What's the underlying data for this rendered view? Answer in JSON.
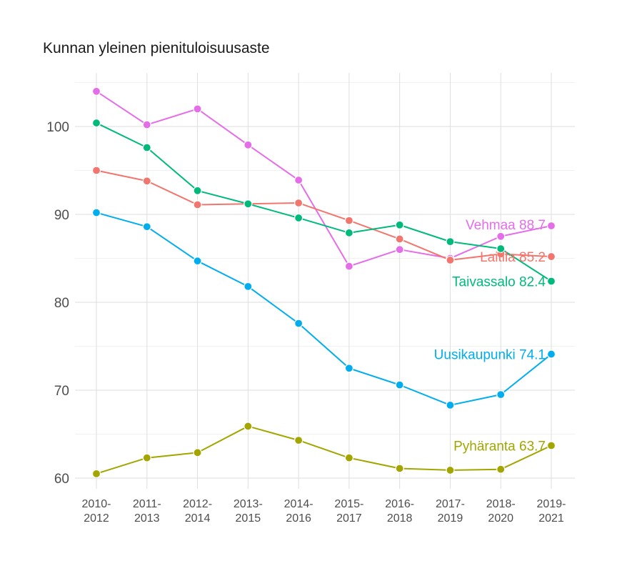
{
  "chart_data": {
    "type": "line",
    "title": "Kunnan yleinen pienituloisuusaste",
    "xlabel": "",
    "ylabel": "",
    "categories": [
      "2010-\n2012",
      "2011-\n2013",
      "2012-\n2014",
      "2013-\n2015",
      "2014-\n2016",
      "2015-\n2017",
      "2016-\n2018",
      "2017-\n2019",
      "2018-\n2020",
      "2019-\n2021"
    ],
    "ylim": [
      58.5,
      105
    ],
    "yticks": [
      60,
      70,
      80,
      90,
      100
    ],
    "grid": true,
    "legend": "none",
    "series": [
      {
        "name": "Vehmaa",
        "color": "#e56de9",
        "end_label": "Vehmaa 88.7",
        "values": [
          104.0,
          100.2,
          102.0,
          97.9,
          93.9,
          84.1,
          86.0,
          85.0,
          87.5,
          88.7
        ]
      },
      {
        "name": "Laitila",
        "color": "#f2766d",
        "end_label": "Laitila 85.2",
        "values": [
          95.0,
          93.8,
          91.1,
          91.2,
          91.3,
          89.3,
          87.2,
          84.8,
          85.5,
          85.2
        ]
      },
      {
        "name": "Taivassalo",
        "color": "#00ba7c",
        "end_label": "Taivassalo 82.4",
        "values": [
          100.4,
          97.6,
          92.7,
          91.2,
          89.6,
          87.9,
          88.8,
          86.9,
          86.1,
          82.4
        ]
      },
      {
        "name": "Uusikaupunki",
        "color": "#00aeef",
        "end_label": "Uusikaupunki 74.1",
        "values": [
          90.2,
          88.6,
          84.7,
          81.8,
          77.6,
          72.5,
          70.6,
          68.3,
          69.5,
          74.1
        ]
      },
      {
        "name": "Pyhäranta",
        "color": "#a3a500",
        "end_label": "Pyhäranta 63.7",
        "values": [
          60.5,
          62.3,
          62.9,
          65.9,
          64.3,
          62.3,
          61.1,
          60.9,
          61.0,
          63.7
        ]
      }
    ]
  }
}
